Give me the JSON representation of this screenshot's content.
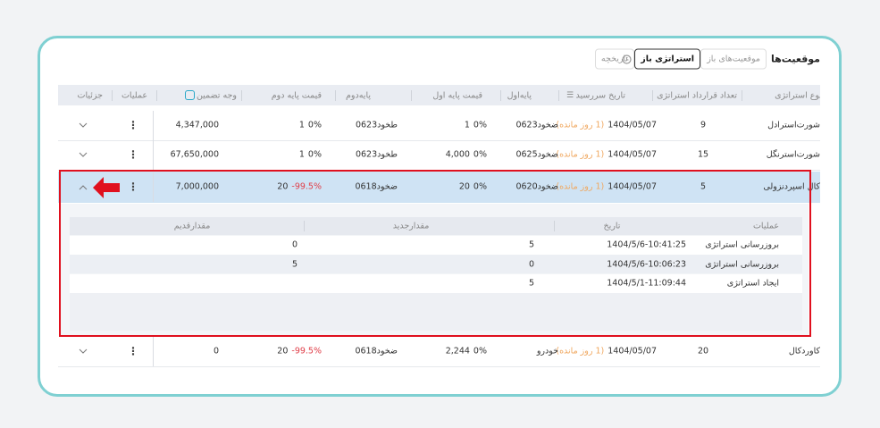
{
  "header": {
    "title": "موقعیت‌ها",
    "tabs": [
      "موقعیت‌های باز",
      "استراتژی باز",
      "تاریخچه"
    ],
    "active_tab": 1
  },
  "table": {
    "columns": [
      "نوع استراتژی",
      "تعداد قرارداد استراتژی",
      "تاریخ سررسید",
      "پایه‌اول",
      "قیمت پایه اول",
      "پایه‌دوم",
      "قیمت پایه دوم",
      "وجه تضمین",
      "عملیات",
      "جزئیات"
    ],
    "expanded_row": 2,
    "rows": [
      {
        "strategy": "شورت‌استرادل",
        "count": 9,
        "expiry": "1404/05/07",
        "remaining": "(1 روز مانده)",
        "base1": "ضخود0623",
        "price1": {
          "price": "1",
          "change": "0%"
        },
        "base2": "طخود0623",
        "price2": {
          "price": "1",
          "change": "0%"
        },
        "margin": "4,347,000"
      },
      {
        "strategy": "شورت‌استرنگل",
        "count": 15,
        "expiry": "1404/05/07",
        "remaining": "(1 روز مانده)",
        "base1": "ضخود0625",
        "price1": {
          "price": "4,000",
          "change": "0%"
        },
        "base2": "طخود0623",
        "price2": {
          "price": "1",
          "change": "0%"
        },
        "margin": "67,650,000"
      },
      {
        "strategy": "کال اسپردنزولی",
        "count": 5,
        "expiry": "1404/05/07",
        "remaining": "(1 روز مانده)",
        "base1": "ضخود0620",
        "price1": {
          "price": "20",
          "change": "0%"
        },
        "base2": "ضخود0618",
        "price2": {
          "price": "20",
          "change": "-99.5%"
        },
        "margin": "7,000,000"
      },
      {
        "strategy": "کاوردکال",
        "count": 20,
        "expiry": "1404/05/07",
        "remaining": "(1 روز مانده)",
        "base1": "خودرو",
        "price1": {
          "price": "2,244",
          "change": "0%"
        },
        "base2": "ضخود0618",
        "price2": {
          "price": "20",
          "change": "-99.5%"
        },
        "margin": "0"
      }
    ]
  },
  "details": {
    "columns": [
      "عملیات",
      "تاریخ",
      "مقدارجدید",
      "مقدارقدیم"
    ],
    "rows": [
      {
        "operation": "بروزرسانی استراتژی",
        "date": "1404/5/6-10:41:25",
        "new_value": 5,
        "old_value": 0
      },
      {
        "operation": "بروزرسانی استراتژی",
        "date": "1404/5/6-10:06:23",
        "new_value": 0,
        "old_value": 5
      },
      {
        "operation": "ایجاد استراتژی",
        "date": "1404/5/1-11:09:44",
        "new_value": 5
      }
    ]
  }
}
